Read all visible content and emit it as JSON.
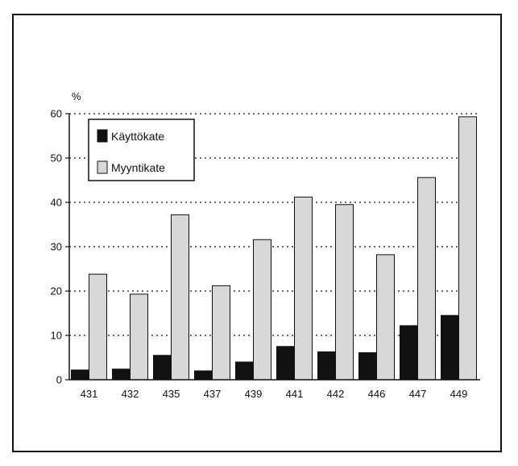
{
  "chart_data": {
    "type": "bar",
    "ylabel": "%",
    "categories": [
      "431",
      "432",
      "435",
      "437",
      "439",
      "441",
      "442",
      "446",
      "447",
      "449"
    ],
    "series": [
      {
        "name": "Käyttökate",
        "values": [
          2.2,
          2.4,
          5.5,
          2.0,
          4.0,
          7.5,
          6.3,
          6.1,
          12.2,
          14.5
        ],
        "color": "#111111"
      },
      {
        "name": "Myyntikate",
        "values": [
          23.8,
          19.3,
          37.2,
          21.2,
          31.6,
          41.2,
          39.5,
          28.2,
          45.6,
          59.3
        ],
        "color": "#d8d8d8"
      }
    ],
    "ylim": [
      0,
      60
    ],
    "yticks": [
      0,
      10,
      20,
      30,
      40,
      50,
      60
    ],
    "grid": "horizontal dotted",
    "legend_position": "top-left"
  }
}
